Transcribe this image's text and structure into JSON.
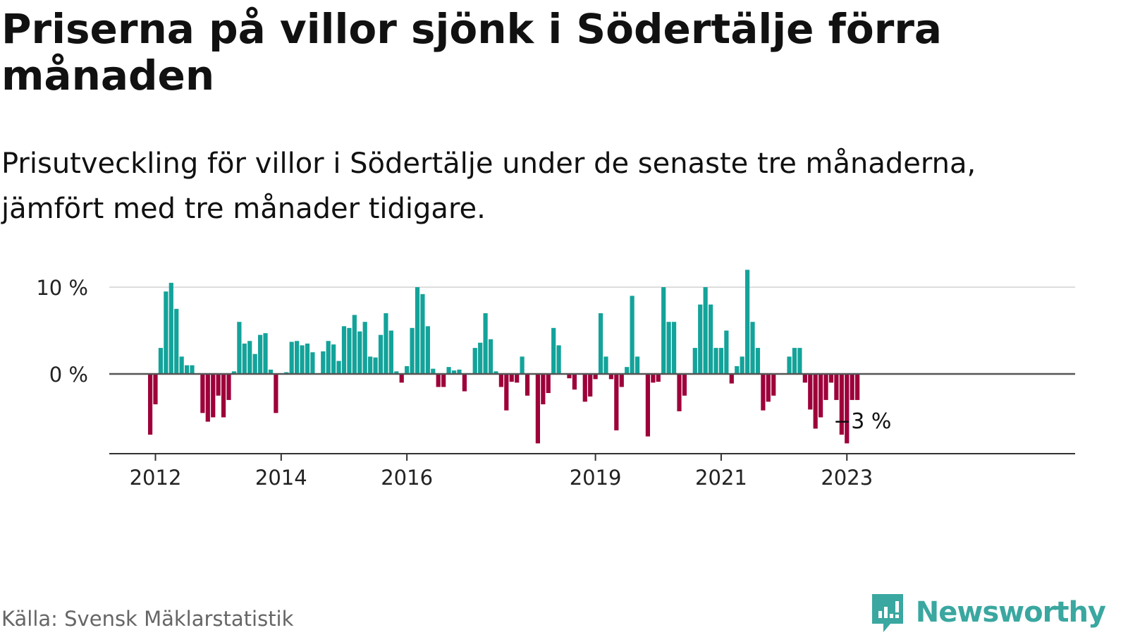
{
  "title": "Priserna på villor sjönk i Södertälje förra månaden",
  "subtitle": "Prisutveckling för villor i Södertälje under de senaste tre månaderna, jämfört med tre månader tidigare.",
  "source": "Källa: Svensk Mäklarstatistik",
  "brand": {
    "name": "Newsworthy",
    "icon": "newsworthy-logo-icon",
    "color": "#3aa7a0"
  },
  "chart_data": {
    "type": "bar",
    "title": "",
    "xlabel": "",
    "ylabel": "",
    "start": "2011-12",
    "unit": "%",
    "ylim": [
      -9,
      11
    ],
    "yticks": [
      {
        "value": 0,
        "label": "0 %"
      },
      {
        "value": 10,
        "label": "10 %"
      }
    ],
    "xticks": [
      {
        "value": "2012-01",
        "label": "2012"
      },
      {
        "value": "2014-01",
        "label": "2014"
      },
      {
        "value": "2016-01",
        "label": "2016"
      },
      {
        "value": "2019-01",
        "label": "2019"
      },
      {
        "value": "2021-01",
        "label": "2021"
      },
      {
        "value": "2023-01",
        "label": "2023"
      }
    ],
    "grid": true,
    "colors": {
      "positive": "#13a39a",
      "negative": "#9e003a",
      "grid": "#dddddd",
      "zero": "#555555"
    },
    "annotation": {
      "text": "−3 %",
      "month": "2023-03"
    },
    "values": [
      -7,
      -3.5,
      3,
      9.5,
      10.5,
      7.5,
      2,
      1,
      1,
      null,
      -4.5,
      -5.5,
      -5,
      -2.5,
      -5,
      -3,
      0.3,
      6,
      3.5,
      3.8,
      2.3,
      4.5,
      4.7,
      0.5,
      -4.5,
      null,
      0.2,
      3.7,
      3.8,
      3.3,
      3.5,
      2.5,
      null,
      2.6,
      3.8,
      3.4,
      1.5,
      5.5,
      5.3,
      6.8,
      4.9,
      6,
      2,
      1.9,
      4.5,
      7,
      5,
      0.3,
      -1,
      0.9,
      5.3,
      10,
      9.2,
      5.5,
      0.6,
      -1.5,
      -1.5,
      0.8,
      0.4,
      0.5,
      -2,
      null,
      3,
      3.6,
      7,
      4,
      0.3,
      -1.5,
      -4.2,
      -0.9,
      -1,
      2,
      -2.5,
      null,
      -8,
      -3.5,
      -2.2,
      5.3,
      3.3,
      null,
      -0.5,
      -1.8,
      null,
      -3.2,
      -2.6,
      -0.6,
      7,
      2,
      -0.6,
      -6.5,
      -1.5,
      0.8,
      9,
      2,
      null,
      -7.2,
      -1,
      -0.9,
      10,
      6,
      6,
      -4.3,
      -2.5,
      null,
      3,
      8,
      10,
      8,
      3,
      3,
      5,
      -1.1,
      0.9,
      2,
      12,
      6,
      3,
      -4.2,
      -3.2,
      -2.5,
      null,
      null,
      2,
      3,
      3,
      -1,
      -4.1,
      -6.3,
      -5,
      -3,
      -1,
      -3,
      -7,
      -8,
      -3,
      -3
    ]
  }
}
